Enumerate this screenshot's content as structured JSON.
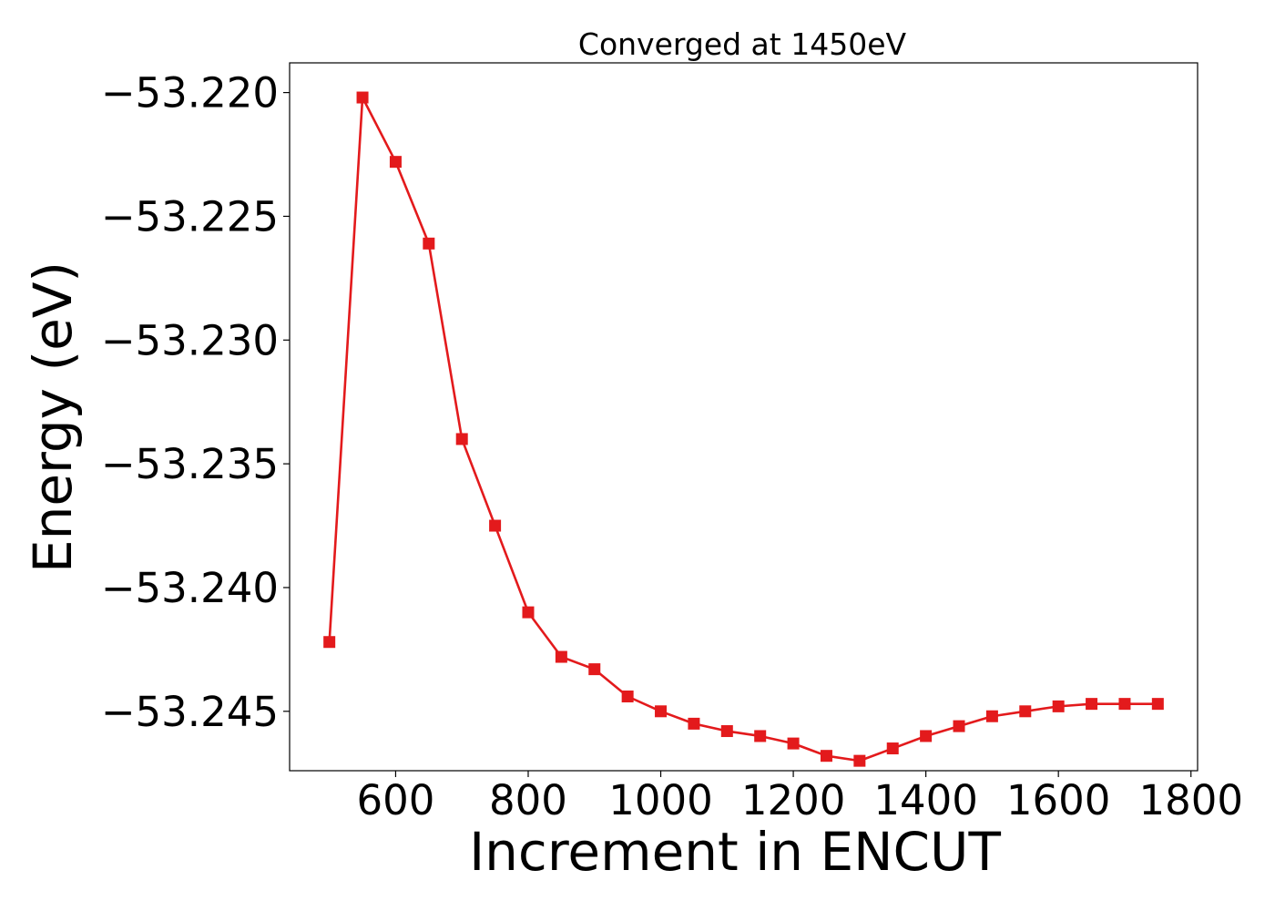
{
  "chart_data": {
    "type": "line",
    "title": "Converged at 1450eV",
    "xlabel": "Increment in ENCUT",
    "ylabel": "Energy (eV)",
    "xlim": [
      440,
      1810
    ],
    "ylim": [
      -53.2474,
      -53.2188
    ],
    "xticks": [
      600,
      800,
      1000,
      1200,
      1400,
      1600,
      1800
    ],
    "xtick_labels": [
      "600",
      "800",
      "1000",
      "1200",
      "1400",
      "1600",
      "1800"
    ],
    "yticks": [
      -53.22,
      -53.225,
      -53.23,
      -53.235,
      -53.24,
      -53.245
    ],
    "ytick_labels": [
      "−53.220",
      "−53.225",
      "−53.230",
      "−53.235",
      "−53.240",
      "−53.245"
    ],
    "grid": false,
    "series": [
      {
        "color": "#e31a1c",
        "marker": "square",
        "x": [
          500,
          550,
          600,
          650,
          700,
          750,
          800,
          850,
          900,
          950,
          1000,
          1050,
          1100,
          1150,
          1200,
          1250,
          1300,
          1350,
          1400,
          1450,
          1500,
          1550,
          1600,
          1650,
          1700,
          1750
        ],
        "y": [
          -53.2422,
          -53.2202,
          -53.2228,
          -53.2261,
          -53.234,
          -53.2375,
          -53.241,
          -53.2428,
          -53.2433,
          -53.2444,
          -53.245,
          -53.2455,
          -53.2458,
          -53.246,
          -53.2463,
          -53.2468,
          -53.247,
          -53.2465,
          -53.246,
          -53.2456,
          -53.2452,
          -53.245,
          -53.2448,
          -53.2447,
          -53.2447,
          -53.2447
        ]
      }
    ]
  }
}
